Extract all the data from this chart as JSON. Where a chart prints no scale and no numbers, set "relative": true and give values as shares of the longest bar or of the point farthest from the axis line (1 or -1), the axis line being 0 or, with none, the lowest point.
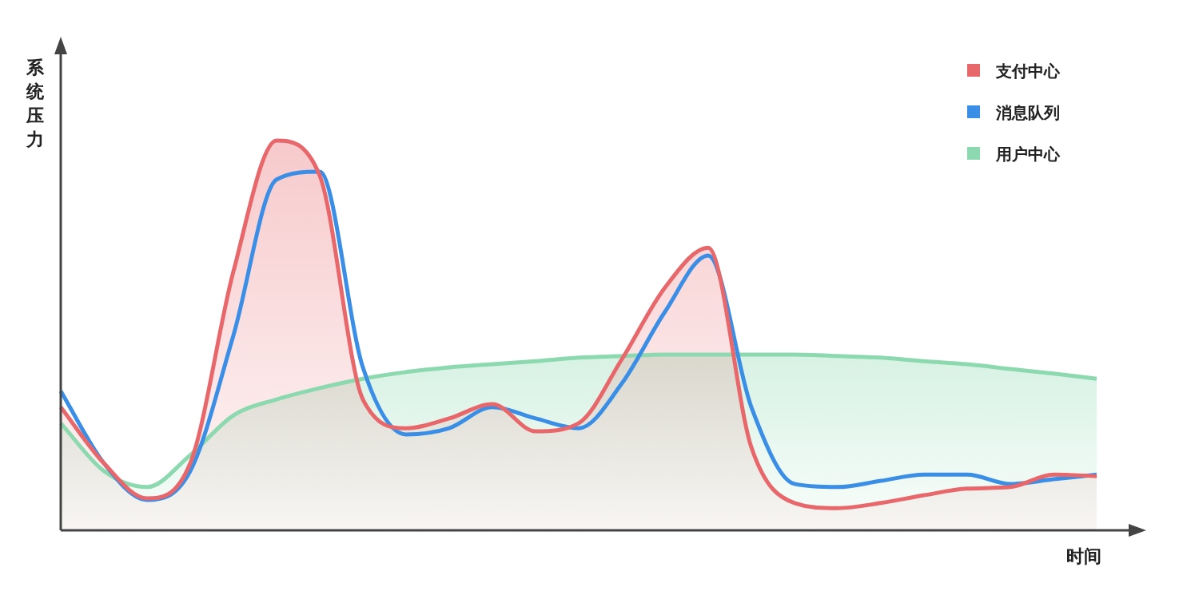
{
  "chart_data": {
    "type": "area",
    "relative": true,
    "ylabel": "系统压力",
    "xlabel": "时间",
    "legend": "top right",
    "marker": "none",
    "categories": [
      null,
      null,
      null,
      null,
      null,
      null,
      null,
      null,
      null,
      null,
      null,
      null,
      null,
      null,
      null,
      null,
      null,
      null,
      null,
      null,
      null,
      null,
      null,
      null,
      null
    ],
    "series": [
      {
        "name": "支付中心",
        "color": "#e8676b",
        "values": [
          0.316,
          0.172,
          0.082,
          0.172,
          0.664,
          1.0,
          0.91,
          0.336,
          0.262,
          0.287,
          0.324,
          0.254,
          0.275,
          0.439,
          0.623,
          0.725,
          0.213,
          0.07,
          0.057,
          0.07,
          0.09,
          0.107,
          0.111,
          0.143,
          0.139
        ]
      },
      {
        "name": "消息队列",
        "type": "line",
        "color": "#3a8ee6",
        "values": [
          0.357,
          0.172,
          0.078,
          0.152,
          0.5,
          0.9,
          0.92,
          0.418,
          0.246,
          0.262,
          0.316,
          0.287,
          0.262,
          0.377,
          0.561,
          0.705,
          0.316,
          0.119,
          0.111,
          0.127,
          0.143,
          0.143,
          0.119,
          0.131,
          0.143
        ]
      },
      {
        "name": "用户中心",
        "color": "#8cd9b0",
        "values": [
          0.275,
          0.152,
          0.111,
          0.193,
          0.295,
          0.336,
          0.365,
          0.389,
          0.406,
          0.418,
          0.426,
          0.434,
          0.443,
          0.447,
          0.451,
          0.451,
          0.451,
          0.451,
          0.447,
          0.443,
          0.434,
          0.426,
          0.414,
          0.402,
          0.389
        ]
      }
    ]
  }
}
